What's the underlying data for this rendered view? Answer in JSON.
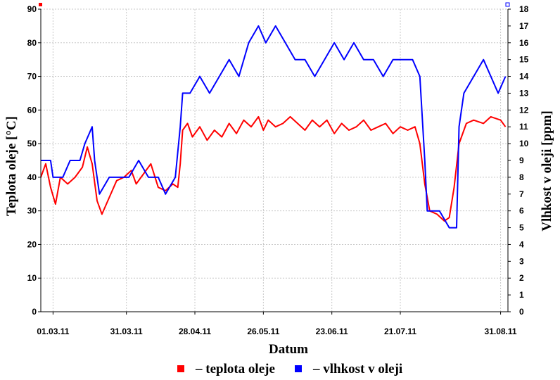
{
  "chart_data": {
    "type": "line",
    "xlabel": "Datum",
    "ylabel_left": "Teplota oleje [°C]",
    "ylabel_right": "Vlhkost v oleji [ppm]",
    "x_range": [
      "2011-02-24",
      "2011-09-03"
    ],
    "ylim_left": [
      0,
      90
    ],
    "ylim_right": [
      0,
      18
    ],
    "y_ticks_left": [
      0,
      10,
      20,
      30,
      40,
      50,
      60,
      70,
      80,
      90
    ],
    "y_ticks_right": [
      0,
      1,
      2,
      3,
      4,
      5,
      6,
      7,
      8,
      9,
      10,
      11,
      12,
      13,
      14,
      15,
      16,
      17,
      18
    ],
    "x_ticks": [
      {
        "date": "2011-03-01",
        "label": "01.03.11"
      },
      {
        "date": "2011-03-31",
        "label": "31.03.11"
      },
      {
        "date": "2011-04-28",
        "label": "28.04.11"
      },
      {
        "date": "2011-05-26",
        "label": "26.05.11"
      },
      {
        "date": "2011-06-23",
        "label": "23.06.11"
      },
      {
        "date": "2011-07-21",
        "label": "21.07.11"
      },
      {
        "date": "2011-08-31",
        "label": "31.08.11"
      }
    ],
    "grid": true,
    "legend_position": "bottom",
    "legend": [
      {
        "label": "– teplota oleje",
        "color": "#ff0000"
      },
      {
        "label": "– vlhkost v oleji",
        "color": "#0000ff"
      }
    ],
    "series": [
      {
        "name": "teplota oleje",
        "axis": "left",
        "color": "#ff0000",
        "points": [
          [
            "2011-02-24",
            40
          ],
          [
            "2011-02-26",
            44
          ],
          [
            "2011-02-28",
            37
          ],
          [
            "2011-03-02",
            32
          ],
          [
            "2011-03-04",
            40
          ],
          [
            "2011-03-07",
            38
          ],
          [
            "2011-03-10",
            40
          ],
          [
            "2011-03-13",
            43
          ],
          [
            "2011-03-15",
            49
          ],
          [
            "2011-03-17",
            44
          ],
          [
            "2011-03-19",
            33
          ],
          [
            "2011-03-21",
            29
          ],
          [
            "2011-03-24",
            34
          ],
          [
            "2011-03-27",
            39
          ],
          [
            "2011-03-30",
            40
          ],
          [
            "2011-04-02",
            42
          ],
          [
            "2011-04-04",
            38
          ],
          [
            "2011-04-07",
            41
          ],
          [
            "2011-04-10",
            44
          ],
          [
            "2011-04-13",
            37
          ],
          [
            "2011-04-16",
            36
          ],
          [
            "2011-04-19",
            38
          ],
          [
            "2011-04-21",
            37
          ],
          [
            "2011-04-22",
            44
          ],
          [
            "2011-04-23",
            54
          ],
          [
            "2011-04-25",
            56
          ],
          [
            "2011-04-27",
            52
          ],
          [
            "2011-04-30",
            55
          ],
          [
            "2011-05-03",
            51
          ],
          [
            "2011-05-06",
            54
          ],
          [
            "2011-05-09",
            52
          ],
          [
            "2011-05-12",
            56
          ],
          [
            "2011-05-15",
            53
          ],
          [
            "2011-05-18",
            57
          ],
          [
            "2011-05-21",
            55
          ],
          [
            "2011-05-24",
            58
          ],
          [
            "2011-05-26",
            54
          ],
          [
            "2011-05-28",
            57
          ],
          [
            "2011-05-31",
            55
          ],
          [
            "2011-06-03",
            56
          ],
          [
            "2011-06-06",
            58
          ],
          [
            "2011-06-09",
            56
          ],
          [
            "2011-06-12",
            54
          ],
          [
            "2011-06-15",
            57
          ],
          [
            "2011-06-18",
            55
          ],
          [
            "2011-06-21",
            57
          ],
          [
            "2011-06-24",
            53
          ],
          [
            "2011-06-27",
            56
          ],
          [
            "2011-06-30",
            54
          ],
          [
            "2011-07-03",
            55
          ],
          [
            "2011-07-06",
            57
          ],
          [
            "2011-07-09",
            54
          ],
          [
            "2011-07-12",
            55
          ],
          [
            "2011-07-15",
            56
          ],
          [
            "2011-07-18",
            53
          ],
          [
            "2011-07-21",
            55
          ],
          [
            "2011-07-24",
            54
          ],
          [
            "2011-07-27",
            55
          ],
          [
            "2011-07-29",
            50
          ],
          [
            "2011-07-31",
            38
          ],
          [
            "2011-08-02",
            30
          ],
          [
            "2011-08-05",
            29
          ],
          [
            "2011-08-08",
            27
          ],
          [
            "2011-08-10",
            28
          ],
          [
            "2011-08-12",
            37
          ],
          [
            "2011-08-14",
            50
          ],
          [
            "2011-08-17",
            56
          ],
          [
            "2011-08-20",
            57
          ],
          [
            "2011-08-24",
            56
          ],
          [
            "2011-08-27",
            58
          ],
          [
            "2011-08-31",
            57
          ],
          [
            "2011-09-02",
            55
          ]
        ]
      },
      {
        "name": "vlhkost v oleji",
        "axis": "right",
        "color": "#0000ff",
        "points": [
          [
            "2011-02-24",
            9
          ],
          [
            "2011-02-28",
            9
          ],
          [
            "2011-03-01",
            8
          ],
          [
            "2011-03-05",
            8
          ],
          [
            "2011-03-08",
            9
          ],
          [
            "2011-03-12",
            9
          ],
          [
            "2011-03-14",
            10
          ],
          [
            "2011-03-17",
            11
          ],
          [
            "2011-03-18",
            9
          ],
          [
            "2011-03-20",
            7
          ],
          [
            "2011-03-24",
            8
          ],
          [
            "2011-03-28",
            8
          ],
          [
            "2011-04-01",
            8
          ],
          [
            "2011-04-05",
            9
          ],
          [
            "2011-04-09",
            8
          ],
          [
            "2011-04-13",
            8
          ],
          [
            "2011-04-16",
            7
          ],
          [
            "2011-04-20",
            8
          ],
          [
            "2011-04-22",
            11
          ],
          [
            "2011-04-23",
            13
          ],
          [
            "2011-04-26",
            13
          ],
          [
            "2011-04-30",
            14
          ],
          [
            "2011-05-04",
            13
          ],
          [
            "2011-05-08",
            14
          ],
          [
            "2011-05-12",
            15
          ],
          [
            "2011-05-16",
            14
          ],
          [
            "2011-05-20",
            16
          ],
          [
            "2011-05-24",
            17
          ],
          [
            "2011-05-27",
            16
          ],
          [
            "2011-05-31",
            17
          ],
          [
            "2011-06-04",
            16
          ],
          [
            "2011-06-08",
            15
          ],
          [
            "2011-06-12",
            15
          ],
          [
            "2011-06-16",
            14
          ],
          [
            "2011-06-20",
            15
          ],
          [
            "2011-06-24",
            16
          ],
          [
            "2011-06-28",
            15
          ],
          [
            "2011-07-02",
            16
          ],
          [
            "2011-07-06",
            15
          ],
          [
            "2011-07-10",
            15
          ],
          [
            "2011-07-14",
            14
          ],
          [
            "2011-07-18",
            15
          ],
          [
            "2011-07-22",
            15
          ],
          [
            "2011-07-26",
            15
          ],
          [
            "2011-07-29",
            14
          ],
          [
            "2011-07-31",
            9
          ],
          [
            "2011-08-01",
            6
          ],
          [
            "2011-08-06",
            6
          ],
          [
            "2011-08-10",
            5
          ],
          [
            "2011-08-13",
            5
          ],
          [
            "2011-08-14",
            11
          ],
          [
            "2011-08-16",
            13
          ],
          [
            "2011-08-20",
            14
          ],
          [
            "2011-08-24",
            15
          ],
          [
            "2011-08-27",
            14
          ],
          [
            "2011-08-30",
            13
          ],
          [
            "2011-09-02",
            14
          ]
        ]
      }
    ]
  }
}
